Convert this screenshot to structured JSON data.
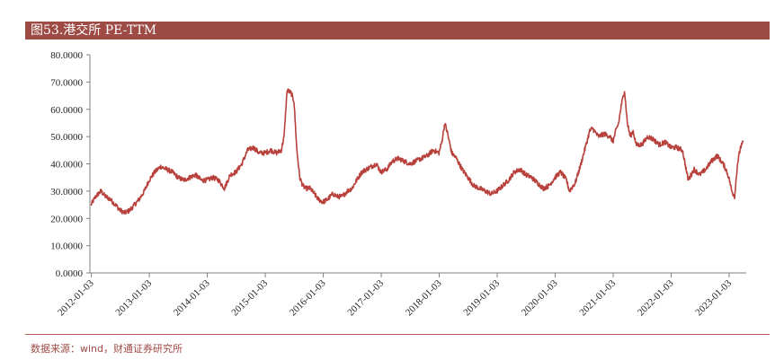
{
  "header": {
    "title": "图53.港交所 PE-TTM"
  },
  "footer": {
    "source": "数据来源：wind，财通证券研究所"
  },
  "colors": {
    "title_bg": "#9e4a45",
    "series": "#b8413c",
    "axis": "#7f7f7f"
  },
  "chart_data": {
    "type": "line",
    "title": "",
    "xlabel": "",
    "ylabel": "",
    "ylim": [
      0,
      80
    ],
    "y_ticks": [
      "80.0000",
      "70.0000",
      "60.0000",
      "50.0000",
      "40.0000",
      "30.0000",
      "20.0000",
      "10.0000",
      "0.0000"
    ],
    "x_ticks": [
      "2012-01-03",
      "2013-01-03",
      "2014-01-03",
      "2015-01-03",
      "2016-01-03",
      "2017-01-03",
      "2018-01-03",
      "2019-01-03",
      "2020-01-03",
      "2021-01-03",
      "2022-01-03",
      "2023-01-03"
    ],
    "grid": false,
    "series": [
      {
        "x": [
          2012.0,
          2012.08,
          2012.17,
          2012.25,
          2012.33,
          2012.42,
          2012.5,
          2012.58,
          2012.67,
          2012.75,
          2012.83,
          2012.92,
          2013.0,
          2013.1,
          2013.2,
          2013.3,
          2013.4,
          2013.5,
          2013.6,
          2013.7,
          2013.8,
          2013.9,
          2014.0,
          2014.1,
          2014.2,
          2014.3,
          2014.4,
          2014.5,
          2014.6,
          2014.7,
          2014.8,
          2014.9,
          2015.0,
          2015.1,
          2015.2,
          2015.28,
          2015.33,
          2015.38,
          2015.45,
          2015.5,
          2015.55,
          2015.6,
          2015.65,
          2015.7,
          2015.78,
          2015.85,
          2015.92,
          2016.0,
          2016.08,
          2016.17,
          2016.25,
          2016.33,
          2016.42,
          2016.5,
          2016.58,
          2016.67,
          2016.75,
          2016.83,
          2016.92,
          2017.0,
          2017.1,
          2017.2,
          2017.3,
          2017.4,
          2017.5,
          2017.6,
          2017.7,
          2017.8,
          2017.9,
          2018.0,
          2018.05,
          2018.1,
          2018.15,
          2018.22,
          2018.3,
          2018.4,
          2018.5,
          2018.6,
          2018.7,
          2018.8,
          2018.9,
          2019.0,
          2019.1,
          2019.2,
          2019.3,
          2019.4,
          2019.5,
          2019.6,
          2019.7,
          2019.8,
          2019.9,
          2020.0,
          2020.1,
          2020.2,
          2020.25,
          2020.35,
          2020.45,
          2020.55,
          2020.6,
          2020.65,
          2020.75,
          2020.85,
          2020.95,
          2021.0,
          2021.05,
          2021.1,
          2021.15,
          2021.2,
          2021.25,
          2021.3,
          2021.35,
          2021.4,
          2021.5,
          2021.6,
          2021.7,
          2021.8,
          2021.9,
          2022.0,
          2022.1,
          2022.2,
          2022.3,
          2022.4,
          2022.5,
          2022.6,
          2022.7,
          2022.8,
          2022.9,
          2022.95,
          2023.0,
          2023.05,
          2023.1,
          2023.15,
          2023.2,
          2023.25
        ],
        "values": [
          25,
          28,
          30,
          28,
          27,
          25,
          23,
          22,
          23,
          25,
          27,
          30,
          34,
          37,
          39,
          38,
          37,
          35,
          34,
          35,
          36,
          34,
          34,
          35,
          34,
          31,
          36,
          37,
          40,
          45,
          46,
          44,
          44,
          45,
          44,
          45,
          50,
          67,
          66,
          63,
          45,
          35,
          32,
          31,
          31,
          29,
          27,
          26,
          27,
          29,
          28,
          28,
          30,
          31,
          34,
          37,
          38,
          39,
          40,
          37,
          38,
          41,
          42,
          41,
          40,
          41,
          42,
          43,
          45,
          44,
          48,
          55,
          51,
          44,
          42,
          38,
          35,
          32,
          31,
          30,
          29,
          30,
          32,
          34,
          37,
          38,
          36,
          35,
          33,
          31,
          32,
          35,
          37,
          34,
          30,
          33,
          40,
          48,
          52,
          53,
          50,
          51,
          50,
          48,
          52,
          55,
          62,
          67,
          55,
          50,
          52,
          47,
          47,
          50,
          49,
          47,
          48,
          46,
          46,
          45,
          34,
          38,
          36,
          38,
          41,
          43,
          40,
          38,
          35,
          30,
          28,
          40,
          46,
          48
        ]
      }
    ]
  }
}
